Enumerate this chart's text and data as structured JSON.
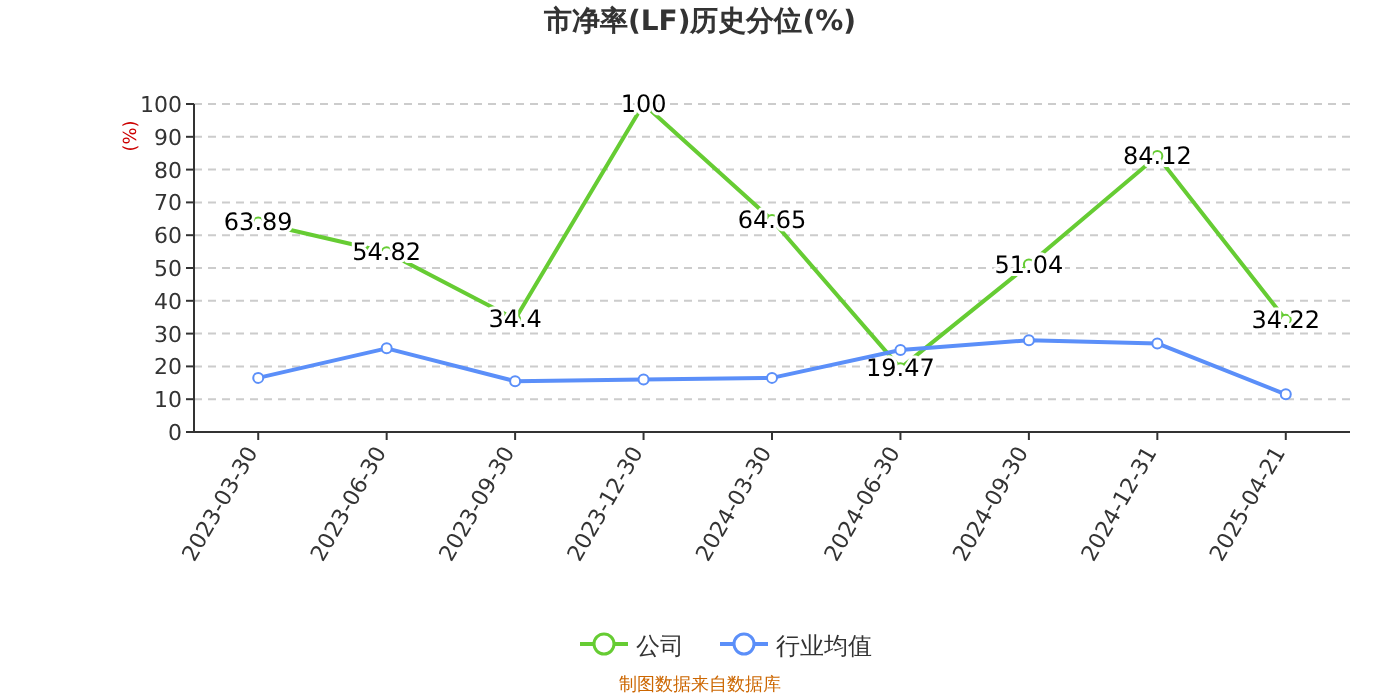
{
  "chart_data": {
    "type": "line",
    "title": "市净率(LF)历史分位(%)",
    "ylabel": "(%)",
    "categories": [
      "2023-03-30",
      "2023-06-30",
      "2023-09-30",
      "2023-12-30",
      "2024-03-30",
      "2024-06-30",
      "2024-09-30",
      "2024-12-31",
      "2025-04-21"
    ],
    "series": [
      {
        "name": "公司",
        "color": "#66cc33",
        "values": [
          63.89,
          54.82,
          34.4,
          100,
          64.65,
          19.47,
          51.04,
          84.12,
          34.22
        ],
        "value_labels": [
          "63.89",
          "54.82",
          "34.4",
          "100",
          "64.65",
          "19.47",
          "51.04",
          "84.12",
          "34.22"
        ]
      },
      {
        "name": "行业均值",
        "color": "#5b8ff9",
        "values": [
          16.5,
          25.5,
          15.5,
          16,
          16.5,
          25,
          28,
          27,
          11.5
        ]
      }
    ],
    "ylim": [
      0,
      100
    ],
    "yticks": [
      0,
      10,
      20,
      30,
      40,
      50,
      60,
      70,
      80,
      90,
      100
    ],
    "grid": "y",
    "legend": "bottom",
    "marker": "circle",
    "annotations": [
      "制图数据来自数据库"
    ]
  }
}
